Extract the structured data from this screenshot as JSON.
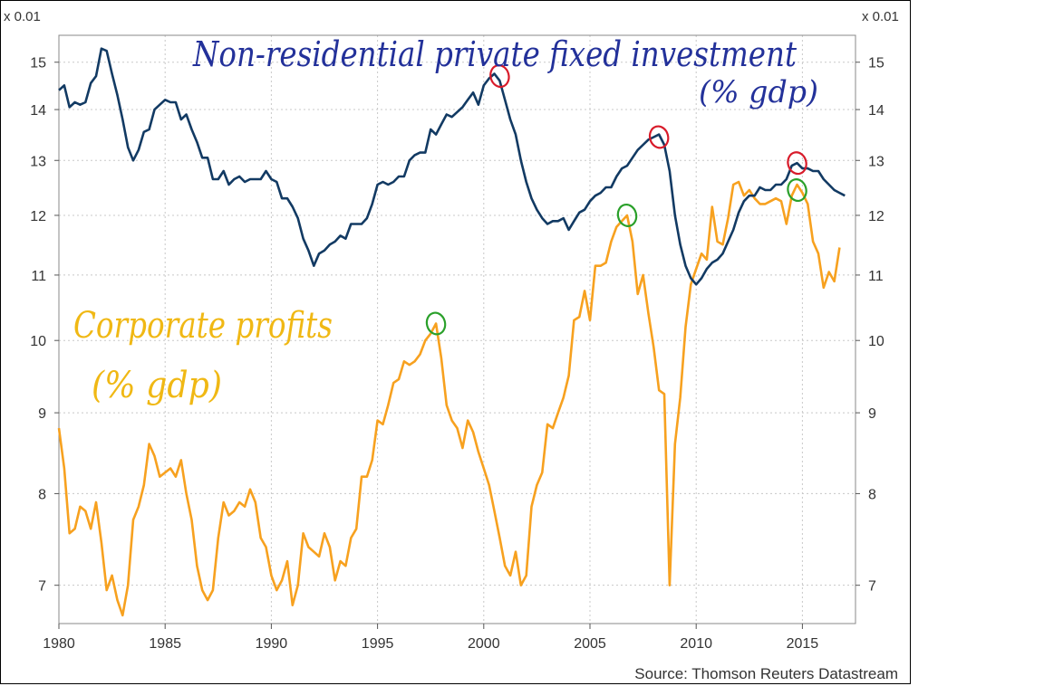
{
  "chart_data": {
    "type": "line",
    "unit_left": "x 0.01",
    "unit_right": "x 0.01",
    "source": "Source: Thomson Reuters Datastream",
    "y_scale": "log",
    "ylim": [
      6.62,
      15.6
    ],
    "xlim": [
      1980,
      2017.5
    ],
    "x_ticks": [
      "1980",
      "1985",
      "1990",
      "1995",
      "2000",
      "2005",
      "2010",
      "2015"
    ],
    "y_ticks": [
      "7",
      "8",
      "9",
      "10",
      "11",
      "12",
      "13",
      "14",
      "15"
    ],
    "grid": true,
    "annotations": [
      {
        "text": "Non-residential private fixed investment",
        "color": "#23319a"
      },
      {
        "text": "(% gdp)",
        "color": "#23319a"
      },
      {
        "text": "Corporate profits",
        "color": "#f0b814"
      },
      {
        "text": "(% gdp)",
        "color": "#f0b814"
      }
    ],
    "series": [
      {
        "key": "investment",
        "color": "#123a63",
        "points": [
          [
            1980.0,
            14.4
          ],
          [
            1980.25,
            14.5
          ],
          [
            1980.5,
            14.05
          ],
          [
            1980.75,
            14.15
          ],
          [
            1981.0,
            14.1
          ],
          [
            1981.25,
            14.15
          ],
          [
            1981.5,
            14.55
          ],
          [
            1981.75,
            14.7
          ],
          [
            1982.0,
            15.3
          ],
          [
            1982.25,
            15.25
          ],
          [
            1982.5,
            14.75
          ],
          [
            1982.75,
            14.3
          ],
          [
            1983.0,
            13.8
          ],
          [
            1983.25,
            13.25
          ],
          [
            1983.5,
            13.0
          ],
          [
            1983.75,
            13.2
          ],
          [
            1984.0,
            13.55
          ],
          [
            1984.25,
            13.6
          ],
          [
            1984.5,
            14.0
          ],
          [
            1984.75,
            14.1
          ],
          [
            1985.0,
            14.2
          ],
          [
            1985.25,
            14.15
          ],
          [
            1985.5,
            14.15
          ],
          [
            1985.75,
            13.8
          ],
          [
            1986.0,
            13.9
          ],
          [
            1986.25,
            13.6
          ],
          [
            1986.5,
            13.35
          ],
          [
            1986.75,
            13.05
          ],
          [
            1987.0,
            13.05
          ],
          [
            1987.25,
            12.65
          ],
          [
            1987.5,
            12.65
          ],
          [
            1987.75,
            12.8
          ],
          [
            1988.0,
            12.55
          ],
          [
            1988.25,
            12.65
          ],
          [
            1988.5,
            12.7
          ],
          [
            1988.75,
            12.6
          ],
          [
            1989.0,
            12.65
          ],
          [
            1989.5,
            12.65
          ],
          [
            1989.75,
            12.8
          ],
          [
            1990.0,
            12.65
          ],
          [
            1990.25,
            12.6
          ],
          [
            1990.5,
            12.3
          ],
          [
            1990.75,
            12.3
          ],
          [
            1991.0,
            12.15
          ],
          [
            1991.25,
            11.95
          ],
          [
            1991.5,
            11.6
          ],
          [
            1991.75,
            11.4
          ],
          [
            1992.0,
            11.15
          ],
          [
            1992.25,
            11.35
          ],
          [
            1992.5,
            11.4
          ],
          [
            1992.75,
            11.5
          ],
          [
            1993.0,
            11.55
          ],
          [
            1993.25,
            11.65
          ],
          [
            1993.5,
            11.6
          ],
          [
            1993.75,
            11.85
          ],
          [
            1994.0,
            11.85
          ],
          [
            1994.25,
            11.85
          ],
          [
            1994.5,
            11.95
          ],
          [
            1994.75,
            12.2
          ],
          [
            1995.0,
            12.55
          ],
          [
            1995.25,
            12.6
          ],
          [
            1995.5,
            12.55
          ],
          [
            1995.75,
            12.6
          ],
          [
            1996.0,
            12.7
          ],
          [
            1996.25,
            12.7
          ],
          [
            1996.5,
            13.0
          ],
          [
            1996.75,
            13.1
          ],
          [
            1997.0,
            13.15
          ],
          [
            1997.25,
            13.15
          ],
          [
            1997.5,
            13.6
          ],
          [
            1997.75,
            13.5
          ],
          [
            1998.0,
            13.7
          ],
          [
            1998.25,
            13.9
          ],
          [
            1998.5,
            13.85
          ],
          [
            1998.75,
            13.95
          ],
          [
            1999.0,
            14.05
          ],
          [
            1999.25,
            14.2
          ],
          [
            1999.5,
            14.35
          ],
          [
            1999.75,
            14.1
          ],
          [
            2000.0,
            14.5
          ],
          [
            2000.25,
            14.65
          ],
          [
            2000.5,
            14.75
          ],
          [
            2000.75,
            14.6
          ],
          [
            2001.0,
            14.2
          ],
          [
            2001.25,
            13.8
          ],
          [
            2001.5,
            13.5
          ],
          [
            2001.75,
            13.0
          ],
          [
            2002.0,
            12.6
          ],
          [
            2002.25,
            12.3
          ],
          [
            2002.5,
            12.1
          ],
          [
            2002.75,
            11.95
          ],
          [
            2003.0,
            11.85
          ],
          [
            2003.25,
            11.9
          ],
          [
            2003.5,
            11.9
          ],
          [
            2003.75,
            11.95
          ],
          [
            2004.0,
            11.75
          ],
          [
            2004.25,
            11.9
          ],
          [
            2004.5,
            12.05
          ],
          [
            2004.75,
            12.1
          ],
          [
            2005.0,
            12.25
          ],
          [
            2005.25,
            12.35
          ],
          [
            2005.5,
            12.4
          ],
          [
            2005.75,
            12.5
          ],
          [
            2006.0,
            12.5
          ],
          [
            2006.25,
            12.7
          ],
          [
            2006.5,
            12.85
          ],
          [
            2006.75,
            12.9
          ],
          [
            2007.0,
            13.05
          ],
          [
            2007.25,
            13.2
          ],
          [
            2007.5,
            13.3
          ],
          [
            2007.75,
            13.4
          ],
          [
            2008.0,
            13.45
          ],
          [
            2008.25,
            13.5
          ],
          [
            2008.5,
            13.3
          ],
          [
            2008.75,
            12.8
          ],
          [
            2009.0,
            12.0
          ],
          [
            2009.25,
            11.5
          ],
          [
            2009.5,
            11.15
          ],
          [
            2009.75,
            10.95
          ],
          [
            2010.0,
            10.85
          ],
          [
            2010.25,
            10.95
          ],
          [
            2010.5,
            11.1
          ],
          [
            2010.75,
            11.2
          ],
          [
            2011.0,
            11.25
          ],
          [
            2011.25,
            11.35
          ],
          [
            2011.5,
            11.55
          ],
          [
            2011.75,
            11.75
          ],
          [
            2012.0,
            12.05
          ],
          [
            2012.25,
            12.25
          ],
          [
            2012.5,
            12.35
          ],
          [
            2012.75,
            12.35
          ],
          [
            2013.0,
            12.5
          ],
          [
            2013.25,
            12.45
          ],
          [
            2013.5,
            12.45
          ],
          [
            2013.75,
            12.55
          ],
          [
            2014.0,
            12.55
          ],
          [
            2014.25,
            12.65
          ],
          [
            2014.5,
            12.9
          ],
          [
            2014.75,
            12.95
          ],
          [
            2015.0,
            12.85
          ],
          [
            2015.25,
            12.85
          ],
          [
            2015.5,
            12.8
          ],
          [
            2015.75,
            12.8
          ],
          [
            2016.0,
            12.65
          ],
          [
            2016.25,
            12.55
          ],
          [
            2016.5,
            12.45
          ],
          [
            2016.75,
            12.4
          ],
          [
            2017.0,
            12.35
          ]
        ]
      },
      {
        "key": "profits",
        "color": "#f7a11f",
        "points": [
          [
            1980.0,
            8.8
          ],
          [
            1980.25,
            8.3
          ],
          [
            1980.5,
            7.55
          ],
          [
            1980.75,
            7.6
          ],
          [
            1981.0,
            7.85
          ],
          [
            1981.25,
            7.8
          ],
          [
            1981.5,
            7.6
          ],
          [
            1981.75,
            7.9
          ],
          [
            1982.0,
            7.45
          ],
          [
            1982.25,
            6.95
          ],
          [
            1982.5,
            7.1
          ],
          [
            1982.75,
            6.85
          ],
          [
            1983.0,
            6.7
          ],
          [
            1983.25,
            7.0
          ],
          [
            1983.5,
            7.7
          ],
          [
            1983.75,
            7.85
          ],
          [
            1984.0,
            8.1
          ],
          [
            1984.25,
            8.6
          ],
          [
            1984.5,
            8.45
          ],
          [
            1984.75,
            8.2
          ],
          [
            1985.0,
            8.25
          ],
          [
            1985.25,
            8.3
          ],
          [
            1985.5,
            8.2
          ],
          [
            1985.75,
            8.4
          ],
          [
            1986.0,
            8.0
          ],
          [
            1986.25,
            7.7
          ],
          [
            1986.5,
            7.2
          ],
          [
            1986.75,
            6.95
          ],
          [
            1987.0,
            6.85
          ],
          [
            1987.25,
            6.95
          ],
          [
            1987.5,
            7.5
          ],
          [
            1987.75,
            7.9
          ],
          [
            1988.0,
            7.75
          ],
          [
            1988.25,
            7.8
          ],
          [
            1988.5,
            7.9
          ],
          [
            1988.75,
            7.85
          ],
          [
            1989.0,
            8.05
          ],
          [
            1989.25,
            7.9
          ],
          [
            1989.5,
            7.5
          ],
          [
            1989.75,
            7.4
          ],
          [
            1990.0,
            7.1
          ],
          [
            1990.25,
            6.95
          ],
          [
            1990.5,
            7.05
          ],
          [
            1990.75,
            7.25
          ],
          [
            1991.0,
            6.8
          ],
          [
            1991.25,
            7.0
          ],
          [
            1991.5,
            7.55
          ],
          [
            1991.75,
            7.4
          ],
          [
            1992.0,
            7.35
          ],
          [
            1992.25,
            7.3
          ],
          [
            1992.5,
            7.55
          ],
          [
            1992.75,
            7.4
          ],
          [
            1993.0,
            7.05
          ],
          [
            1993.25,
            7.25
          ],
          [
            1993.5,
            7.2
          ],
          [
            1993.75,
            7.5
          ],
          [
            1994.0,
            7.6
          ],
          [
            1994.25,
            8.2
          ],
          [
            1994.5,
            8.2
          ],
          [
            1994.75,
            8.4
          ],
          [
            1995.0,
            8.9
          ],
          [
            1995.25,
            8.85
          ],
          [
            1995.5,
            9.1
          ],
          [
            1995.75,
            9.4
          ],
          [
            1996.0,
            9.45
          ],
          [
            1996.25,
            9.7
          ],
          [
            1996.5,
            9.65
          ],
          [
            1996.75,
            9.7
          ],
          [
            1997.0,
            9.8
          ],
          [
            1997.25,
            10.0
          ],
          [
            1997.5,
            10.1
          ],
          [
            1997.75,
            10.25
          ],
          [
            1998.0,
            9.75
          ],
          [
            1998.25,
            9.1
          ],
          [
            1998.5,
            8.9
          ],
          [
            1998.75,
            8.8
          ],
          [
            1999.0,
            8.55
          ],
          [
            1999.25,
            8.9
          ],
          [
            1999.5,
            8.75
          ],
          [
            1999.75,
            8.5
          ],
          [
            2000.0,
            8.3
          ],
          [
            2000.25,
            8.1
          ],
          [
            2000.5,
            7.8
          ],
          [
            2000.75,
            7.5
          ],
          [
            2001.0,
            7.2
          ],
          [
            2001.25,
            7.1
          ],
          [
            2001.5,
            7.35
          ],
          [
            2001.75,
            7.0
          ],
          [
            2002.0,
            7.1
          ],
          [
            2002.25,
            7.85
          ],
          [
            2002.5,
            8.1
          ],
          [
            2002.75,
            8.25
          ],
          [
            2003.0,
            8.85
          ],
          [
            2003.25,
            8.8
          ],
          [
            2003.5,
            9.0
          ],
          [
            2003.75,
            9.2
          ],
          [
            2004.0,
            9.5
          ],
          [
            2004.25,
            10.3
          ],
          [
            2004.5,
            10.35
          ],
          [
            2004.75,
            10.75
          ],
          [
            2005.0,
            10.3
          ],
          [
            2005.25,
            11.15
          ],
          [
            2005.5,
            11.15
          ],
          [
            2005.75,
            11.2
          ],
          [
            2006.0,
            11.55
          ],
          [
            2006.25,
            11.8
          ],
          [
            2006.5,
            11.9
          ],
          [
            2006.75,
            12.0
          ],
          [
            2007.0,
            11.55
          ],
          [
            2007.25,
            10.7
          ],
          [
            2007.5,
            11.0
          ],
          [
            2007.75,
            10.4
          ],
          [
            2008.0,
            9.9
          ],
          [
            2008.25,
            9.3
          ],
          [
            2008.5,
            9.25
          ],
          [
            2008.75,
            7.0
          ],
          [
            2009.0,
            8.6
          ],
          [
            2009.25,
            9.2
          ],
          [
            2009.5,
            10.2
          ],
          [
            2009.75,
            10.85
          ],
          [
            2010.0,
            11.1
          ],
          [
            2010.25,
            11.35
          ],
          [
            2010.5,
            11.25
          ],
          [
            2010.75,
            12.15
          ],
          [
            2011.0,
            11.55
          ],
          [
            2011.25,
            11.5
          ],
          [
            2011.5,
            11.95
          ],
          [
            2011.75,
            12.55
          ],
          [
            2012.0,
            12.6
          ],
          [
            2012.25,
            12.35
          ],
          [
            2012.5,
            12.45
          ],
          [
            2012.75,
            12.3
          ],
          [
            2013.0,
            12.2
          ],
          [
            2013.25,
            12.2
          ],
          [
            2013.5,
            12.25
          ],
          [
            2013.75,
            12.3
          ],
          [
            2014.0,
            12.25
          ],
          [
            2014.25,
            11.85
          ],
          [
            2014.5,
            12.35
          ],
          [
            2014.75,
            12.55
          ],
          [
            2015.0,
            12.4
          ],
          [
            2015.25,
            12.2
          ],
          [
            2015.5,
            11.55
          ],
          [
            2015.75,
            11.35
          ],
          [
            2016.0,
            10.8
          ],
          [
            2016.25,
            11.05
          ],
          [
            2016.5,
            10.9
          ],
          [
            2016.75,
            11.45
          ]
        ]
      }
    ]
  }
}
